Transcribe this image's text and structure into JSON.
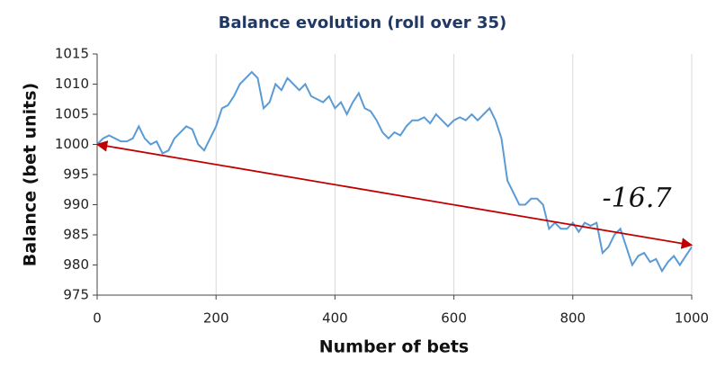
{
  "chart_data": {
    "type": "line",
    "title": "Balance evolution (roll over 35)",
    "xlabel": "Number of bets",
    "ylabel": "Balance (bet units)",
    "xlim": [
      0,
      1000
    ],
    "xticks": [
      0,
      200,
      400,
      600,
      800,
      1000
    ],
    "ylim": [
      975,
      1015
    ],
    "yticks": [
      975,
      980,
      985,
      990,
      995,
      1000,
      1005,
      1010,
      1015
    ],
    "grid": "x",
    "annotations": [
      {
        "text": "-16.7"
      }
    ],
    "series": [
      {
        "color": "#5b9bd5",
        "x": [
          0,
          10,
          20,
          30,
          40,
          50,
          60,
          70,
          80,
          90,
          100,
          110,
          120,
          130,
          140,
          150,
          160,
          170,
          180,
          190,
          200,
          210,
          220,
          230,
          240,
          250,
          260,
          270,
          280,
          290,
          300,
          310,
          320,
          330,
          340,
          350,
          360,
          370,
          380,
          390,
          400,
          410,
          420,
          430,
          440,
          450,
          460,
          470,
          480,
          490,
          500,
          510,
          520,
          530,
          540,
          550,
          560,
          570,
          580,
          590,
          600,
          610,
          620,
          630,
          640,
          650,
          660,
          670,
          680,
          690,
          700,
          710,
          720,
          730,
          740,
          750,
          760,
          770,
          780,
          790,
          800,
          810,
          820,
          830,
          840,
          850,
          860,
          870,
          880,
          890,
          900,
          910,
          920,
          930,
          940,
          950,
          960,
          970,
          980,
          990,
          1000
        ],
        "values": [
          1000,
          1001,
          1001.5,
          1001,
          1000.5,
          1000.5,
          1001,
          1003,
          1001,
          1000,
          1000.5,
          998.5,
          999,
          1001,
          1002,
          1003,
          1002.5,
          1000,
          999,
          1001,
          1003,
          1006,
          1006.5,
          1008,
          1010,
          1011,
          1012,
          1011,
          1006,
          1007,
          1010,
          1009,
          1011,
          1010,
          1009,
          1010,
          1008,
          1007.5,
          1007,
          1008,
          1006,
          1007,
          1005,
          1007,
          1008.5,
          1006,
          1005.5,
          1004,
          1002,
          1001,
          1002,
          1001.5,
          1003,
          1004,
          1004,
          1004.5,
          1003.5,
          1005,
          1004,
          1003,
          1004,
          1004.5,
          1004,
          1005,
          1004,
          1005,
          1006,
          1004,
          1001,
          994,
          992,
          990,
          990,
          991,
          991,
          990,
          986,
          987,
          986,
          986,
          987,
          985.5,
          987,
          986.5,
          987,
          982,
          983,
          985,
          986,
          983,
          980,
          981.5,
          982,
          980.5,
          981,
          979,
          980.5,
          981.5,
          980,
          981.5,
          983
        ]
      },
      {
        "color": "#c00000",
        "x": [
          0,
          1000
        ],
        "values": [
          1000,
          983.3
        ]
      }
    ]
  }
}
